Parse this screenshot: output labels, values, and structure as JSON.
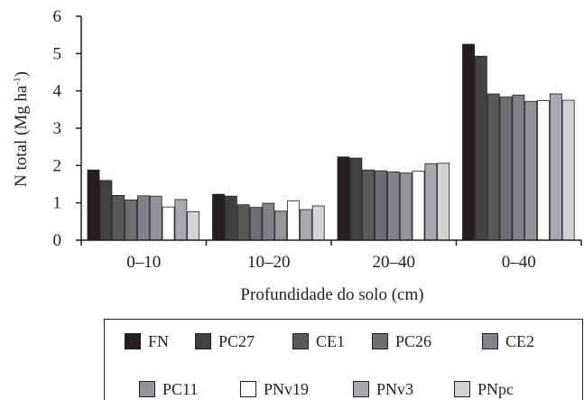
{
  "chart_data": {
    "type": "bar",
    "categories": [
      "0–10",
      "10–20",
      "20–40",
      "0–40"
    ],
    "xlabel": "Profundidade do solo (cm)",
    "ylabel_main": "N total (Mg ha",
    "ylabel_sup": "-1",
    "ylabel_close": ")",
    "ylim": [
      0,
      6
    ],
    "yticks": [
      "0",
      "1",
      "2",
      "3",
      "4",
      "5",
      "6"
    ],
    "grid": false,
    "legend_position": "bottom",
    "series": [
      {
        "name": "FN",
        "color": "#231f20",
        "values": [
          1.88,
          1.23,
          2.23,
          5.25
        ]
      },
      {
        "name": "PC27",
        "color": "#414042",
        "values": [
          1.6,
          1.18,
          2.2,
          4.93
        ]
      },
      {
        "name": "CE1",
        "color": "#58595b",
        "values": [
          1.2,
          0.95,
          1.88,
          3.92
        ]
      },
      {
        "name": "PC26",
        "color": "#6d6e71",
        "values": [
          1.08,
          0.88,
          1.86,
          3.84
        ]
      },
      {
        "name": "CE2",
        "color": "#808285",
        "values": [
          1.19,
          0.99,
          1.83,
          3.89
        ]
      },
      {
        "name": "PC11",
        "color": "#939598",
        "values": [
          1.18,
          0.78,
          1.8,
          3.72
        ]
      },
      {
        "name": "PNv19",
        "color": "#ffffff",
        "values": [
          0.89,
          1.05,
          1.85,
          3.74
        ]
      },
      {
        "name": "PNv3",
        "color": "#a7a9ac",
        "values": [
          1.09,
          0.82,
          2.05,
          3.92
        ]
      },
      {
        "name": "PNpc",
        "color": "#d1d3d4",
        "values": [
          0.76,
          0.92,
          2.06,
          3.75
        ]
      }
    ]
  }
}
